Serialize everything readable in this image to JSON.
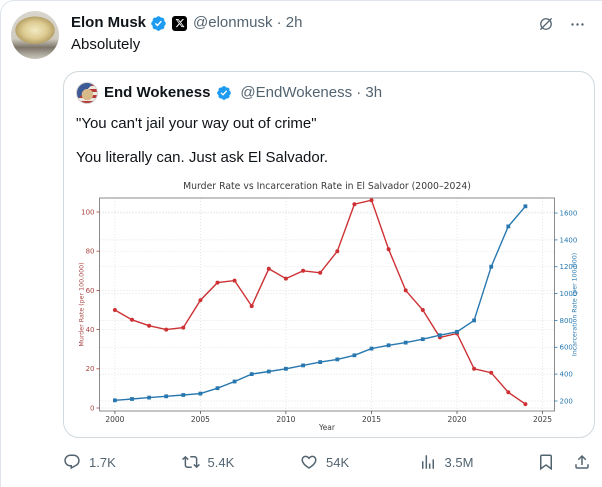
{
  "colors": {
    "accent_blue": "#1d9bf0",
    "text_primary": "#0f1419",
    "text_secondary": "#536471",
    "card_border": "#cfd9de",
    "chart_red": "#cd3134",
    "chart_blue": "#2878af"
  },
  "post": {
    "author": {
      "name": "Elon Musk",
      "handle_time": "@elonmusk · 2h",
      "verified": true,
      "x_affiliate_badge": true
    },
    "text": "Absolutely"
  },
  "quote": {
    "author": {
      "name": "End Wokeness",
      "handle_time": "@EndWokeness · 3h",
      "verified": true
    },
    "line1": "\"You can't jail your way out of crime\"",
    "line2": "You literally can. Just ask El Salvador."
  },
  "chart_data": {
    "type": "line",
    "title": "Murder Rate vs Incarceration Rate in El Salvador (2000–2024)",
    "xlabel": "Year",
    "grid": true,
    "x": [
      2000,
      2001,
      2002,
      2003,
      2004,
      2005,
      2006,
      2007,
      2008,
      2009,
      2010,
      2011,
      2012,
      2013,
      2014,
      2015,
      2016,
      2017,
      2018,
      2019,
      2020,
      2021,
      2022,
      2023,
      2024
    ],
    "x_ticks": [
      2000,
      2005,
      2010,
      2015,
      2020,
      2025
    ],
    "left_axis": {
      "label": "Murder Rate (per 100,000)",
      "ticks": [
        0,
        20,
        40,
        60,
        80,
        100
      ],
      "range": [
        0,
        110
      ],
      "color": "#a84440"
    },
    "right_axis": {
      "label": "Incarceration Rate (per 100,000)",
      "ticks": [
        200,
        400,
        600,
        800,
        1000,
        1200,
        1400,
        1600
      ],
      "range": [
        130,
        1700
      ],
      "color": "#2878af"
    },
    "series": [
      {
        "name": "Murder Rate (per 100,000)",
        "axis": "left",
        "color": "#cd3134",
        "marker": "circle",
        "values": [
          50,
          45,
          42,
          40,
          41,
          55,
          64,
          65,
          52,
          71,
          66,
          70,
          69,
          80,
          104,
          106,
          81,
          60,
          50,
          36,
          38,
          20,
          18,
          8,
          2
        ]
      },
      {
        "name": "Incarceration Rate (per 100,000)",
        "axis": "right",
        "color": "#2878af",
        "marker": "square",
        "values": [
          205,
          215,
          225,
          235,
          245,
          255,
          295,
          345,
          400,
          420,
          440,
          465,
          490,
          510,
          540,
          590,
          615,
          635,
          660,
          690,
          715,
          800,
          1200,
          1500,
          1650
        ]
      }
    ]
  },
  "engagement": {
    "replies": "1.7K",
    "reposts": "5.4K",
    "likes": "54K",
    "views": "3.5M"
  }
}
